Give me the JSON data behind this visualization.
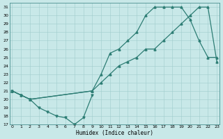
{
  "xlabel": "Humidex (Indice chaleur)",
  "bg_color": "#c8e8e8",
  "line_color": "#2d7d74",
  "grid_color": "#a0cccc",
  "ylim": [
    17,
    31.5
  ],
  "xlim": [
    -0.3,
    23.3
  ],
  "yticks": [
    17,
    18,
    19,
    20,
    21,
    22,
    23,
    24,
    25,
    26,
    27,
    28,
    29,
    30,
    31
  ],
  "xticks": [
    0,
    1,
    2,
    3,
    4,
    5,
    6,
    7,
    8,
    9,
    10,
    11,
    12,
    13,
    14,
    15,
    16,
    17,
    18,
    19,
    20,
    21,
    22,
    23
  ],
  "line1": {
    "x": [
      0,
      1,
      2,
      3,
      4,
      5,
      6,
      7,
      8,
      9
    ],
    "y": [
      21,
      20.5,
      20,
      19,
      18.5,
      18,
      17.8,
      17,
      17.8,
      20.5
    ]
  },
  "line2": {
    "x": [
      0,
      1,
      2,
      9,
      10,
      11,
      12,
      13,
      14,
      15,
      16,
      17,
      18,
      19,
      20,
      21,
      22,
      23
    ],
    "y": [
      21,
      20.5,
      20,
      21,
      22,
      23,
      24,
      24.5,
      25,
      26,
      26,
      27,
      28,
      29,
      30,
      31,
      31,
      24.5
    ]
  },
  "line3": {
    "x": [
      0,
      2,
      9,
      10,
      11,
      12,
      13,
      14,
      15,
      16,
      17,
      18,
      19,
      20,
      21,
      22,
      23
    ],
    "y": [
      21,
      20,
      21,
      23,
      25.5,
      26,
      27,
      28,
      30,
      31,
      31,
      31,
      31,
      29.5,
      27,
      25,
      25
    ]
  }
}
